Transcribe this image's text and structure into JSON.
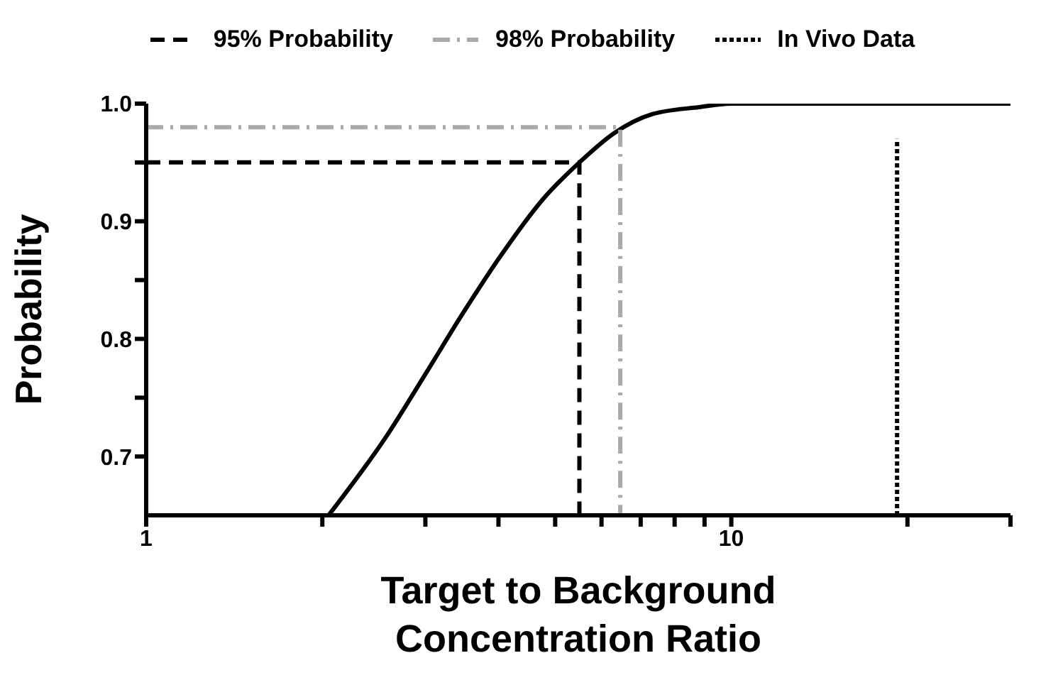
{
  "chart_data": {
    "type": "line",
    "xlabel": "Target to Background\nConcentration Ratio",
    "ylabel": "Probability",
    "log": "x",
    "legend": "top",
    "xlim": [
      1,
      30
    ],
    "xticks": [
      {
        "value": 1,
        "label": "1"
      },
      {
        "value": 2,
        "label": null
      },
      {
        "value": 3,
        "label": null
      },
      {
        "value": 4,
        "label": null
      },
      {
        "value": 5,
        "label": null
      },
      {
        "value": 6,
        "label": null
      },
      {
        "value": 7,
        "label": null
      },
      {
        "value": 8,
        "label": null
      },
      {
        "value": 9,
        "label": null
      },
      {
        "value": 10,
        "label": "10"
      },
      {
        "value": 20,
        "label": null
      },
      {
        "value": 30,
        "label": null
      }
    ],
    "ylim": [
      0.65,
      1.0
    ],
    "yticks": [
      {
        "value": 0.7,
        "label": "0.7"
      },
      {
        "value": 0.75,
        "label": null
      },
      {
        "value": 0.8,
        "label": "0.8"
      },
      {
        "value": 0.85,
        "label": null
      },
      {
        "value": 0.9,
        "label": "0.9"
      },
      {
        "value": 0.95,
        "label": null
      },
      {
        "value": 1.0,
        "label": "1.0"
      }
    ],
    "series": [
      {
        "color": "#000000",
        "line_style": "solid",
        "x": [
          2.05,
          2.58,
          3.0,
          3.48,
          4.04,
          4.77,
          5.5,
          6.31,
          7.32,
          8.8,
          10,
          30
        ],
        "values": [
          0.65,
          0.718,
          0.77,
          0.822,
          0.871,
          0.919,
          0.95,
          0.975,
          0.991,
          0.997,
          1.0,
          1.0
        ]
      },
      {
        "name": "95% Probability",
        "color": "#000000",
        "line_style": "dashed",
        "x": [
          1,
          5.5,
          5.5
        ],
        "values": [
          0.95,
          0.95,
          0.65
        ]
      },
      {
        "name": "98% Probability",
        "color": "#aaaaaa",
        "line_style": "dashdot",
        "x": [
          1,
          6.46,
          6.46
        ],
        "values": [
          0.98,
          0.98,
          0.65
        ]
      },
      {
        "name": "In Vivo Data",
        "color": "#000000",
        "line_style": "dotted",
        "x": [
          19.2,
          19.2
        ],
        "values": [
          0.65,
          0.97
        ]
      }
    ]
  }
}
